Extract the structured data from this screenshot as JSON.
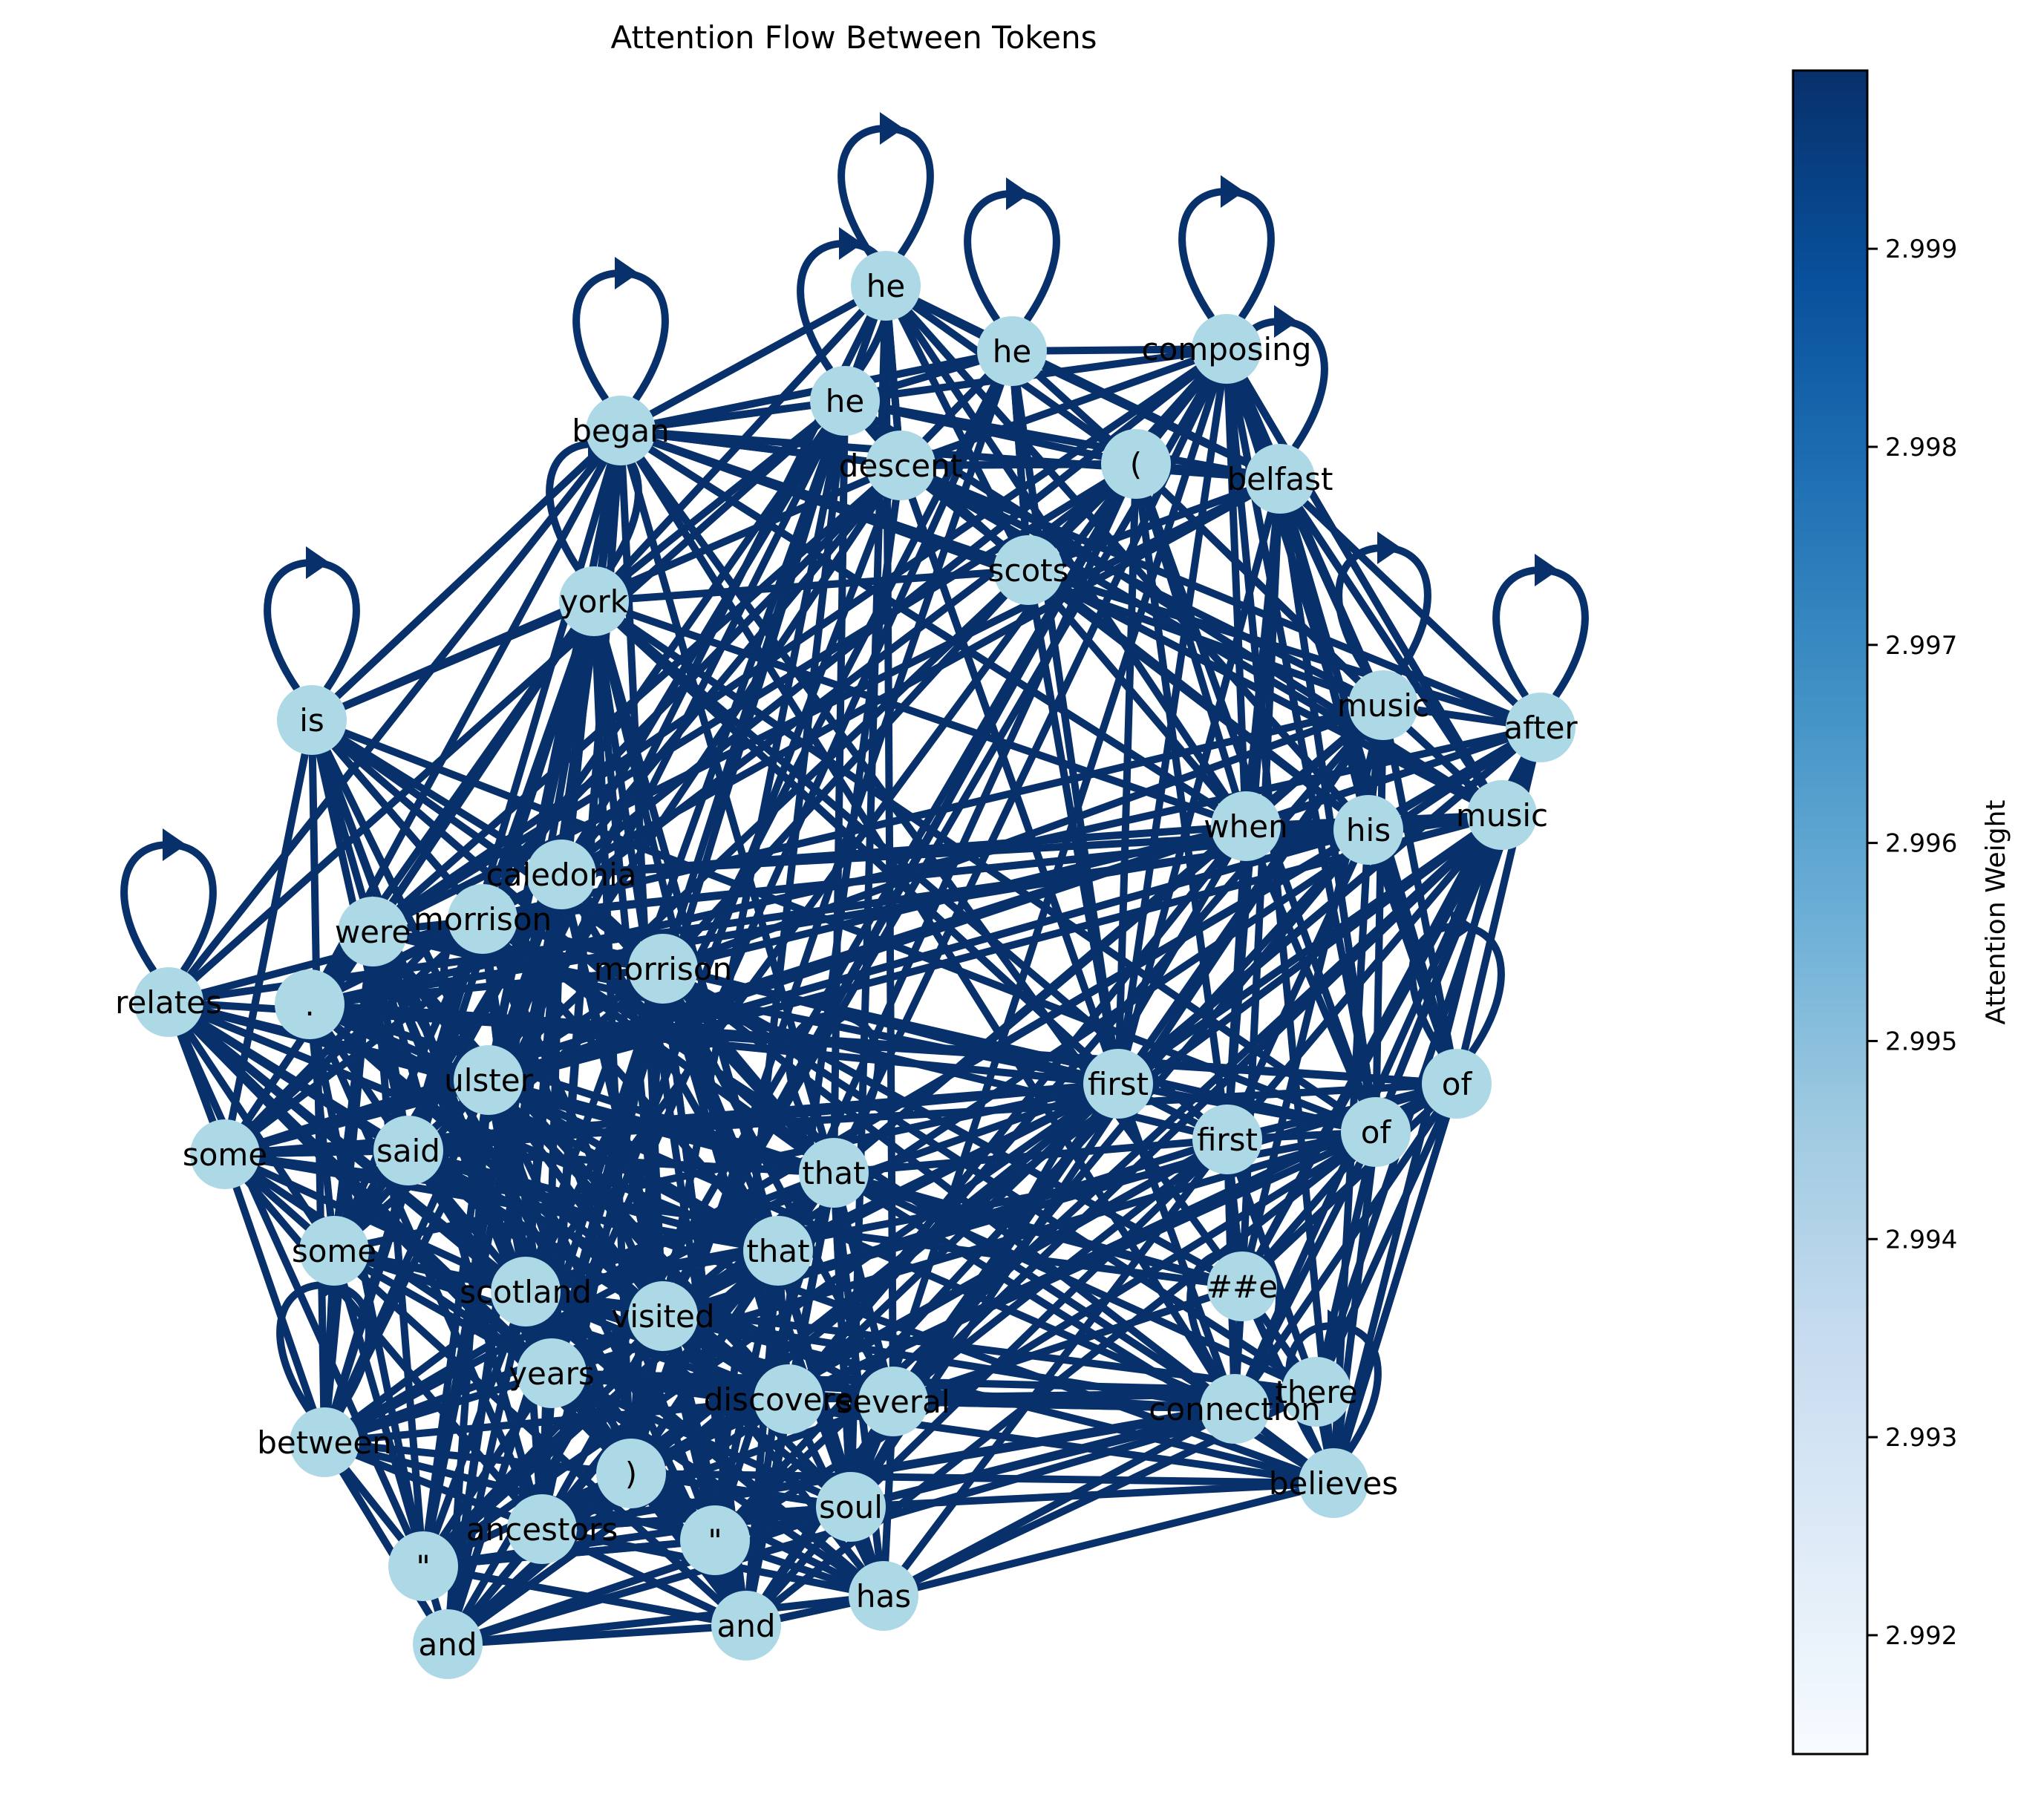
{
  "title": "Attention Flow Between Tokens",
  "colors": {
    "edge": "#08306b",
    "node_fill": "#add8e6",
    "colormap": [
      "#f7fbff",
      "#deebf7",
      "#c6dbef",
      "#9ecae1",
      "#6baed6",
      "#4292c6",
      "#2171b5",
      "#08519c",
      "#08306b"
    ]
  },
  "colorbar": {
    "label": "Attention Weight",
    "range": [
      2.9914,
      2.9999
    ],
    "ticks": [
      "2.992",
      "2.993",
      "2.994",
      "2.995",
      "2.996",
      "2.997",
      "2.998",
      "2.999"
    ],
    "tick_values": [
      2.992,
      2.993,
      2.994,
      2.995,
      2.996,
      2.997,
      2.998,
      2.999
    ]
  },
  "chart_data": {
    "type": "graph",
    "title": "Attention Flow Between Tokens",
    "nodes": [
      "he",
      "he",
      "composing",
      "he",
      "began",
      "descent",
      "(",
      "belfast",
      "scots",
      "york",
      "is",
      "music",
      "after",
      "when",
      "his",
      "music",
      "caledonia",
      "morrison",
      "were",
      "morrison",
      "relates",
      ".",
      "ulster",
      "first",
      "of",
      "said",
      "first",
      "of",
      "some",
      "that",
      "some",
      "that",
      "##e",
      "scotland",
      "visited",
      "years",
      "discovered",
      "several",
      "there",
      "connection",
      "between",
      "believes",
      ")",
      "soul",
      "ancestors",
      "\"",
      "\"",
      "has",
      "and",
      "and"
    ],
    "self_loops": [
      "he",
      "he",
      "composing",
      "he",
      "began",
      "is",
      "after",
      "relates",
      "of",
      "that",
      "between",
      "believes",
      "belfast",
      "music",
      "began",
      "ulster",
      "connection"
    ],
    "edge_weight_all": 2.9999,
    "note": ""
  }
}
